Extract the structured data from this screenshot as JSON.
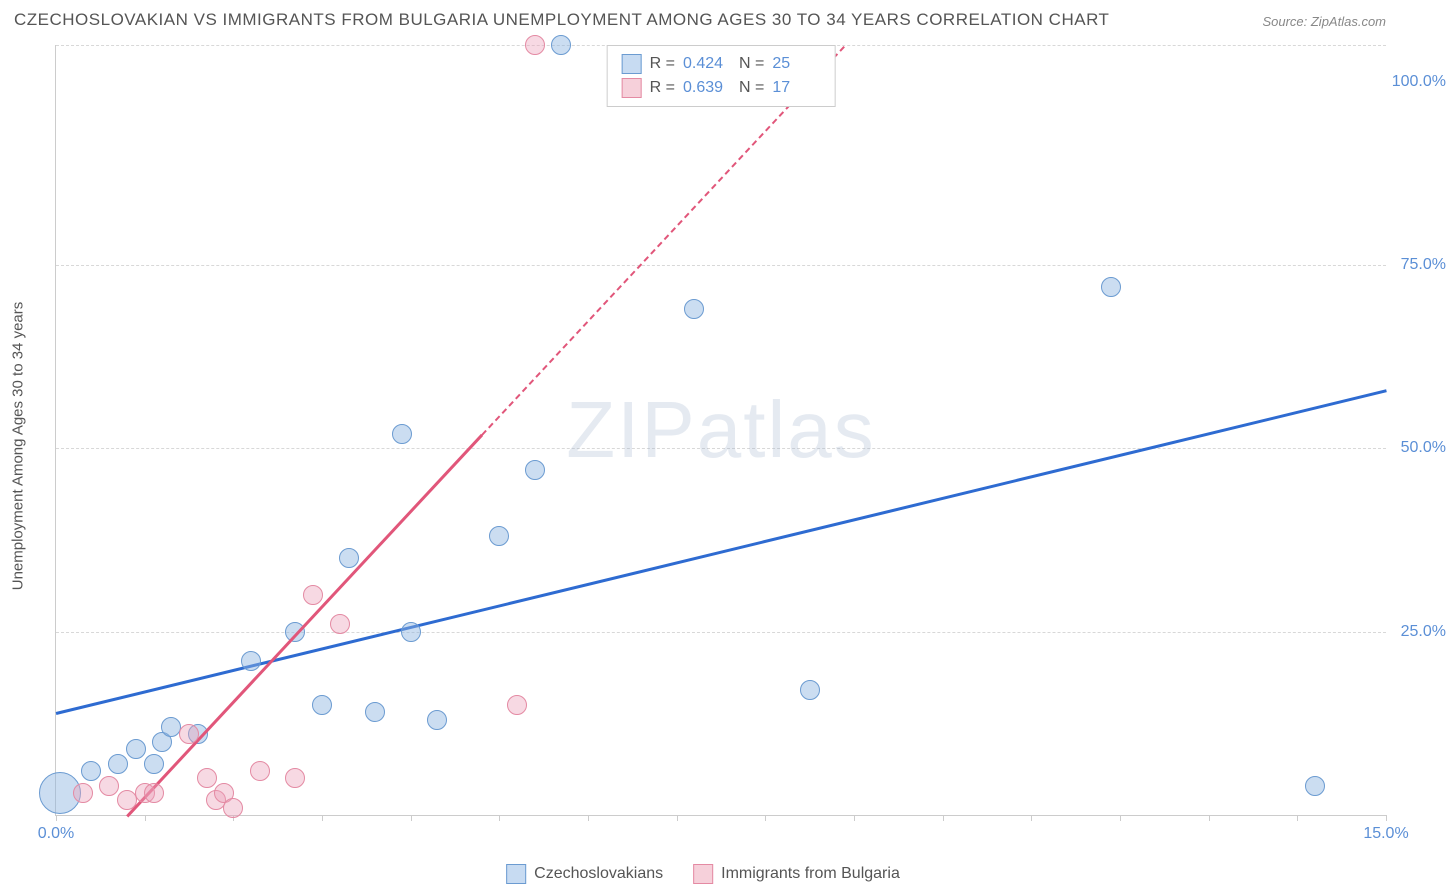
{
  "title": "CZECHOSLOVAKIAN VS IMMIGRANTS FROM BULGARIA UNEMPLOYMENT AMONG AGES 30 TO 34 YEARS CORRELATION CHART",
  "source": "Source: ZipAtlas.com",
  "y_axis_label": "Unemployment Among Ages 30 to 34 years",
  "watermark_a": "ZIP",
  "watermark_b": "atlas",
  "chart": {
    "type": "scatter",
    "xlim": [
      0,
      15
    ],
    "ylim": [
      0,
      105
    ],
    "x_ticks": [
      0,
      1,
      2,
      3,
      4,
      5,
      6,
      7,
      8,
      9,
      10,
      11,
      12,
      13,
      14,
      15
    ],
    "x_tick_labels": {
      "0": "0.0%",
      "15": "15.0%"
    },
    "y_gridlines": [
      25,
      50,
      75,
      105
    ],
    "y_tick_labels": {
      "25": "25.0%",
      "50": "50.0%",
      "75": "75.0%",
      "100": "100.0%"
    },
    "background_color": "#ffffff",
    "grid_color": "#d8d8d8",
    "axis_color": "#cccccc",
    "label_color": "#5b8fd6",
    "title_color": "#555555"
  },
  "legend_top": {
    "rows": [
      {
        "swatch_fill": "#c7dbf2",
        "swatch_border": "#6b9bd1",
        "r_label": "R =",
        "r_value": "0.424",
        "n_label": "N =",
        "n_value": "25"
      },
      {
        "swatch_fill": "#f6d0da",
        "swatch_border": "#e48aa3",
        "r_label": "R =",
        "r_value": "0.639",
        "n_label": "N =",
        "n_value": "17"
      }
    ]
  },
  "legend_bottom": {
    "items": [
      {
        "swatch_fill": "#c7dbf2",
        "swatch_border": "#6b9bd1",
        "label": "Czechoslovakians"
      },
      {
        "swatch_fill": "#f6d0da",
        "swatch_border": "#e48aa3",
        "label": "Immigrants from Bulgaria"
      }
    ]
  },
  "series": [
    {
      "name": "Czechoslovakians",
      "fill": "rgba(140, 180, 225, 0.45)",
      "stroke": "#6b9bd1",
      "marker_radius": 9,
      "trend": {
        "x1": 0,
        "y1": 14,
        "x2": 15,
        "y2": 58,
        "color": "#2e6bd1",
        "dash_after_x": 15
      },
      "points": [
        {
          "x": 0.05,
          "y": 3,
          "r": 20
        },
        {
          "x": 0.4,
          "y": 6
        },
        {
          "x": 0.7,
          "y": 7
        },
        {
          "x": 0.9,
          "y": 9
        },
        {
          "x": 1.1,
          "y": 7
        },
        {
          "x": 1.2,
          "y": 10
        },
        {
          "x": 1.3,
          "y": 12
        },
        {
          "x": 1.6,
          "y": 11
        },
        {
          "x": 2.2,
          "y": 21
        },
        {
          "x": 2.7,
          "y": 25
        },
        {
          "x": 3.0,
          "y": 15
        },
        {
          "x": 3.3,
          "y": 35
        },
        {
          "x": 3.6,
          "y": 14
        },
        {
          "x": 3.9,
          "y": 52
        },
        {
          "x": 4.0,
          "y": 25
        },
        {
          "x": 4.3,
          "y": 13
        },
        {
          "x": 5.0,
          "y": 38
        },
        {
          "x": 5.4,
          "y": 47
        },
        {
          "x": 5.7,
          "y": 105
        },
        {
          "x": 7.2,
          "y": 69
        },
        {
          "x": 8.5,
          "y": 17
        },
        {
          "x": 11.9,
          "y": 72
        },
        {
          "x": 14.2,
          "y": 4
        }
      ]
    },
    {
      "name": "Immigrants from Bulgaria",
      "fill": "rgba(235, 160, 185, 0.4)",
      "stroke": "#e48aa3",
      "marker_radius": 9,
      "trend": {
        "x1": 0.8,
        "y1": 0,
        "x2": 4.8,
        "y2": 52,
        "color": "#e1567a",
        "dash_extend": {
          "x2": 10.2,
          "y2": 122
        }
      },
      "points": [
        {
          "x": 0.3,
          "y": 3
        },
        {
          "x": 0.6,
          "y": 4
        },
        {
          "x": 0.8,
          "y": 2
        },
        {
          "x": 1.0,
          "y": 3
        },
        {
          "x": 1.1,
          "y": 3
        },
        {
          "x": 1.5,
          "y": 11
        },
        {
          "x": 1.7,
          "y": 5
        },
        {
          "x": 1.8,
          "y": 2
        },
        {
          "x": 1.9,
          "y": 3
        },
        {
          "x": 2.0,
          "y": 1
        },
        {
          "x": 2.3,
          "y": 6
        },
        {
          "x": 2.7,
          "y": 5
        },
        {
          "x": 2.9,
          "y": 30
        },
        {
          "x": 3.2,
          "y": 26
        },
        {
          "x": 5.2,
          "y": 15
        },
        {
          "x": 5.4,
          "y": 105
        }
      ]
    }
  ]
}
